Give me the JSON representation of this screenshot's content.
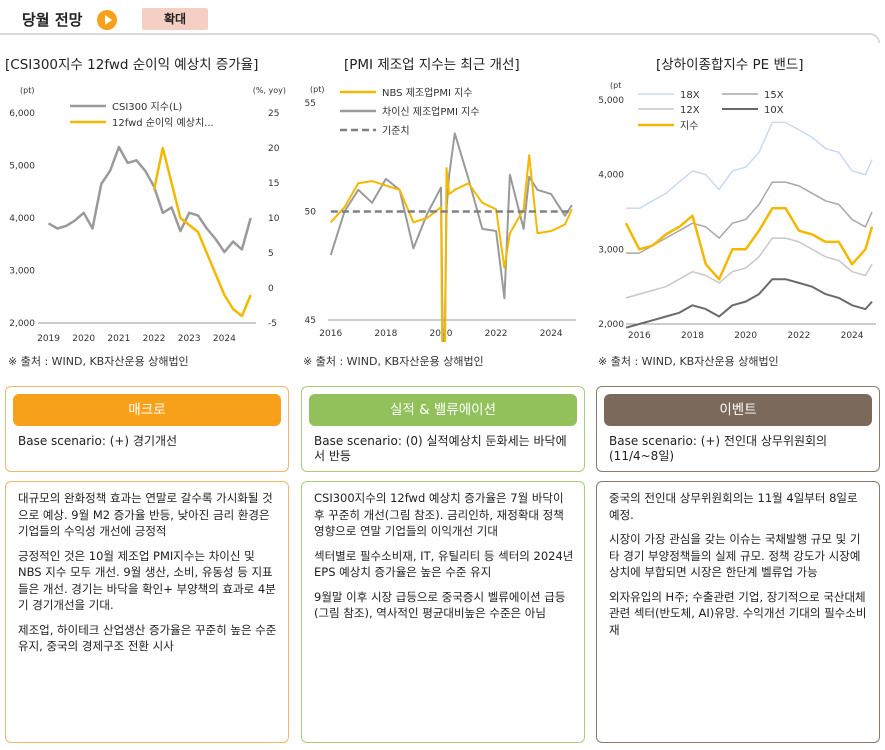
{
  "header": {
    "title": "당월 전망",
    "expand_label": "확대"
  },
  "charts": {
    "csi": {
      "title": "[CSI300지수 12fwd 순이익 예상치 증가율]",
      "left_unit": "(pt)",
      "right_unit": "(%, yoy)",
      "left_ticks": [
        "6,000",
        "5,000",
        "4,000",
        "3,000",
        "2,000"
      ],
      "right_ticks": [
        "25",
        "20",
        "15",
        "10",
        "5",
        "0",
        "-5"
      ],
      "x_ticks": [
        "2019",
        "2020",
        "2021",
        "2022",
        "2023",
        "2024"
      ],
      "legend": [
        "CSI300 지수(L)",
        "12fwd 순이익 예상치..."
      ],
      "source": "※ 출처 : WIND, KB자산운용 상해법인"
    },
    "pmi": {
      "title": "[PMI 제조업 지수는 최근 개선]",
      "unit": "(pt)",
      "y_ticks": [
        "55",
        "50",
        "45"
      ],
      "x_ticks": [
        "2016",
        "2018",
        "2020",
        "2022",
        "2024"
      ],
      "legend": [
        "NBS 제조업PMI 지수",
        "차이신 제조업PMI 지수",
        "기준치"
      ],
      "source": "※ 출처 : WIND, KB자산운용 상해법인"
    },
    "pe": {
      "title": "[상하이종합지수 PE 밴드]",
      "unit": "(pt",
      "y_ticks": [
        "5,000",
        "4,000",
        "3,000",
        "2,000"
      ],
      "x_ticks": [
        "2016",
        "2018",
        "2020",
        "2022",
        "2024"
      ],
      "legend": [
        "18X",
        "15X",
        "12X",
        "10X",
        "지수"
      ],
      "source": "※ 출처 : WIND, KB자산운용 상해법인"
    }
  },
  "chart_data": [
    {
      "type": "line",
      "x": [
        2019.0,
        2019.25,
        2019.5,
        2019.75,
        2020.0,
        2020.25,
        2020.5,
        2020.75,
        2021.0,
        2021.25,
        2021.5,
        2021.75,
        2022.0,
        2022.25,
        2022.5,
        2022.75,
        2023.0,
        2023.25,
        2023.5,
        2023.75,
        2024.0,
        2024.25,
        2024.5,
        2024.75
      ],
      "series": [
        {
          "name": "CSI300 지수(L)",
          "axis": "left",
          "values": [
            3900,
            3800,
            3850,
            3950,
            4100,
            3800,
            4650,
            4900,
            5350,
            5050,
            5100,
            4900,
            4600,
            4100,
            4200,
            3750,
            4100,
            4050,
            3800,
            3600,
            3350,
            3550,
            3400,
            4000
          ]
        },
        {
          "name": "12fwd 순이익 예상치...",
          "axis": "right",
          "values": [
            null,
            null,
            null,
            null,
            null,
            null,
            null,
            null,
            null,
            null,
            null,
            null,
            14,
            20,
            15,
            10,
            9,
            8,
            5,
            2,
            -1,
            -3,
            -4,
            -1
          ]
        }
      ],
      "ylim_left": [
        2000,
        6000
      ],
      "ylim_right": [
        -5,
        25
      ]
    },
    {
      "type": "line",
      "x": [
        2016.0,
        2016.5,
        2017.0,
        2017.5,
        2018.0,
        2018.5,
        2019.0,
        2019.5,
        2020.0,
        2020.1,
        2020.2,
        2020.3,
        2020.5,
        2021.0,
        2021.5,
        2022.0,
        2022.3,
        2022.5,
        2023.0,
        2023.2,
        2023.5,
        2024.0,
        2024.5,
        2024.75
      ],
      "series": [
        {
          "name": "NBS 제조업PMI 지수",
          "values": [
            49.5,
            50.2,
            51.3,
            51.4,
            51.2,
            51.0,
            49.5,
            49.7,
            50.2,
            35.7,
            52.0,
            50.8,
            51.0,
            51.3,
            50.4,
            50.1,
            47.4,
            49.0,
            50.1,
            52.6,
            49.0,
            49.1,
            49.4,
            50.1
          ]
        },
        {
          "name": "차이신 제조업PMI 지수",
          "values": [
            48.0,
            50.0,
            51.0,
            50.4,
            51.5,
            51.0,
            48.3,
            49.9,
            51.1,
            40.3,
            50.1,
            51.7,
            53.6,
            51.5,
            49.2,
            49.1,
            46.0,
            51.7,
            49.2,
            51.6,
            51.0,
            50.8,
            49.8,
            50.3
          ]
        },
        {
          "name": "기준치",
          "values": [
            50,
            50,
            50,
            50,
            50,
            50,
            50,
            50,
            50,
            50,
            50,
            50,
            50,
            50,
            50,
            50,
            50,
            50,
            50,
            50,
            50,
            50,
            50,
            50
          ]
        }
      ],
      "ylim": [
        45,
        55
      ]
    },
    {
      "type": "line",
      "x": [
        2015.5,
        2016.0,
        2016.5,
        2017.0,
        2017.5,
        2018.0,
        2018.5,
        2019.0,
        2019.5,
        2020.0,
        2020.5,
        2021.0,
        2021.5,
        2022.0,
        2022.5,
        2023.0,
        2023.5,
        2024.0,
        2024.5,
        2024.75
      ],
      "series": [
        {
          "name": "18X",
          "values": [
            3550,
            3550,
            3650,
            3750,
            3900,
            4050,
            4000,
            3800,
            4050,
            4100,
            4300,
            4700,
            4700,
            4600,
            4500,
            4350,
            4300,
            4050,
            4000,
            4200
          ]
        },
        {
          "name": "15X",
          "values": [
            2950,
            2950,
            3050,
            3150,
            3250,
            3350,
            3300,
            3150,
            3350,
            3400,
            3600,
            3900,
            3900,
            3850,
            3750,
            3650,
            3600,
            3400,
            3300,
            3500
          ]
        },
        {
          "name": "12X",
          "values": [
            2350,
            2400,
            2450,
            2500,
            2600,
            2700,
            2650,
            2550,
            2700,
            2750,
            2900,
            3150,
            3150,
            3100,
            3000,
            2900,
            2850,
            2700,
            2650,
            2800
          ]
        },
        {
          "name": "10X",
          "values": [
            1950,
            2000,
            2050,
            2100,
            2150,
            2250,
            2200,
            2100,
            2250,
            2300,
            2400,
            2600,
            2600,
            2550,
            2500,
            2400,
            2350,
            2250,
            2200,
            2300
          ]
        },
        {
          "name": "지수",
          "values": [
            3350,
            3000,
            3050,
            3200,
            3300,
            3450,
            2800,
            2600,
            3000,
            3000,
            3250,
            3550,
            3550,
            3250,
            3200,
            3100,
            3100,
            2800,
            3000,
            3300
          ]
        }
      ],
      "ylim": [
        2000,
        5000
      ]
    }
  ],
  "columns": [
    {
      "header": "매크로",
      "color": "#f7a11a",
      "border": "#f3b76b",
      "scenario": "Base scenario: (+) 경기개선",
      "paragraphs": [
        "대규모의 완화정책 효과는 연말로 갈수록 가시화될 것으로 예상. 9월 M2 증가율 반등, 낮아진 금리 환경은 기업들의 수익성 개선에 긍정적",
        "긍정적인 것은 10월 제조업 PMI지수는 차이신 및 NBS 지수 모두 개선. 9월 생산, 소비, 유동성 등 지표들은 개선. 경기는 바닥을 확인+ 부양책의 효과로 4분기 경기개선을 기대.",
        "제조업, 하이테크 산업생산 증가율은 꾸준히 높은 수준 유지, 중국의 경제구조 전환 시사"
      ]
    },
    {
      "header": "실적 & 밸류에이션",
      "color": "#92c05a",
      "border": "#a9cf7c",
      "scenario": "Base scenario: (0) 실적예상치 둔화세는 바닥에서 반등",
      "paragraphs": [
        "CSI300지수의 12fwd 예상치 증가율은 7월 바닥이후 꾸준히 개선(그림 참조). 금리인하, 재정확대 정책 영향으로 연말 기업들의 이익개선 기대",
        "섹터별로 필수소비재, IT, 유틸리티 등 섹터의 2024년 EPS 예상치 증가율은 높은 수준 유지",
        "9월말 이후 시장 급등으로 중국증시 벨류에이션 급등(그림 참조), 역사적인 평균대비높은 수준은 아님"
      ]
    },
    {
      "header": "이벤트",
      "color": "#7b6a5b",
      "border": "#8a7b6c",
      "scenario": "Base scenario: (+) 전인대 상무위원회의(11/4~8일)",
      "paragraphs": [
        "중국의 전인대 상무위원회의는 11월 4일부터 8일로 예정.",
        "시장이 가장 관심을 갖는 이슈는 국채발행 규모 및 기타 경기 부양정책들의 실제 규모. 정책 강도가 시장예상치에 부합되면 시장은 한단계 벨류업 가능",
        "외자유입의 H주; 수출관련 기업, 장기적으로 국산대체 관련 섹터(반도체, AI)유망. 수익개선 기대의 필수소비재"
      ]
    }
  ]
}
